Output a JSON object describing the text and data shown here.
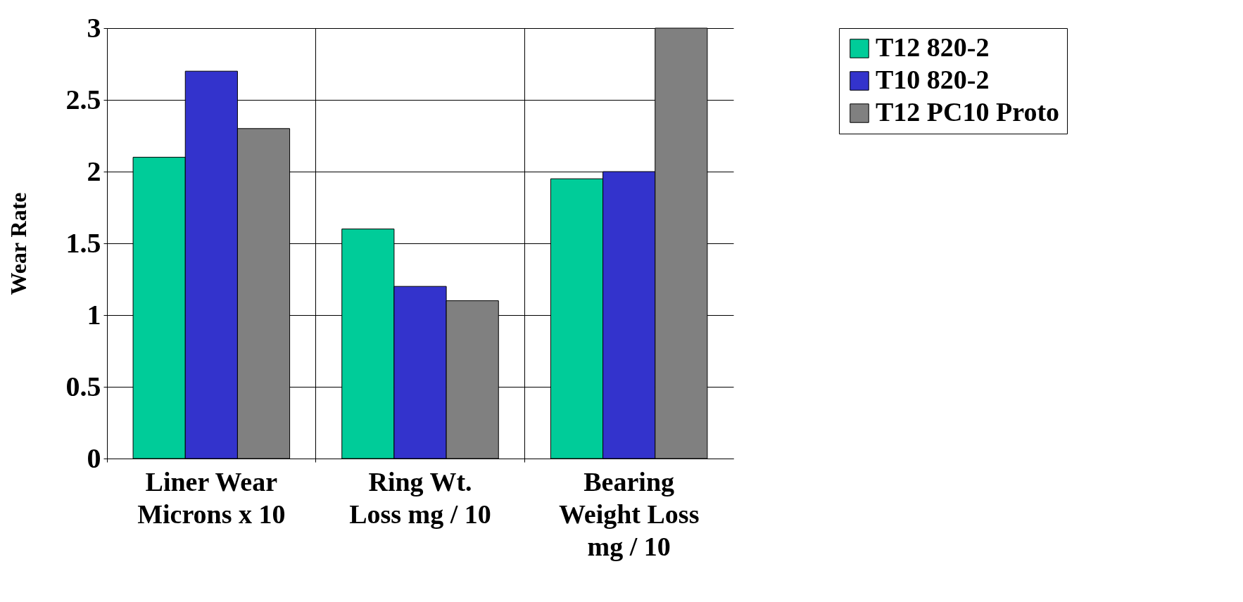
{
  "chart_data": {
    "type": "bar",
    "ylabel": "Wear Rate",
    "categories": [
      "Liner Wear\nMicrons x 10",
      "Ring Wt.\nLoss  mg / 10",
      "Bearing\nWeight Loss\nmg / 10"
    ],
    "series": [
      {
        "name": "T12 820-2",
        "color": "#00cc99",
        "values": [
          2.1,
          1.6,
          1.95
        ]
      },
      {
        "name": "T10 820-2",
        "color": "#3333cc",
        "values": [
          2.7,
          1.2,
          2.0
        ]
      },
      {
        "name": "T12 PC10 Proto",
        "color": "#808080",
        "values": [
          2.3,
          1.1,
          3.0
        ]
      }
    ],
    "ylim": [
      0,
      3
    ],
    "yticks": [
      0,
      0.5,
      1,
      1.5,
      2,
      2.5,
      3
    ],
    "grid": true,
    "legend": "right"
  }
}
